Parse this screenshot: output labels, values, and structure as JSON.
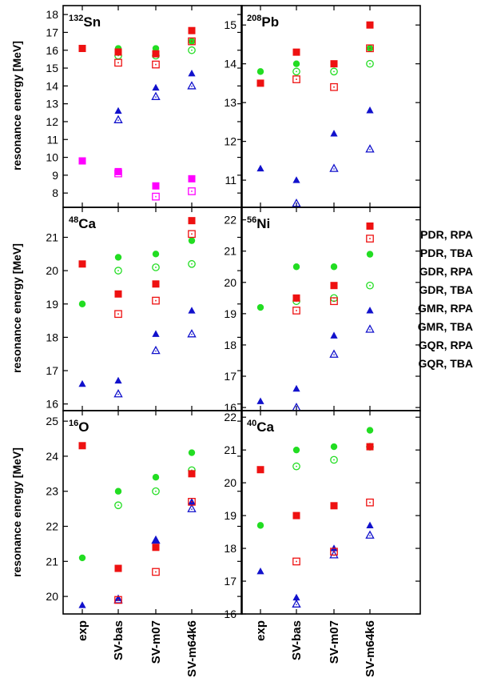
{
  "ylabel": "resonance energy [MeV]",
  "categories": [
    "exp",
    "SV-bas",
    "SV-m07",
    "SV-m64k6"
  ],
  "legend": [
    {
      "key": "PDR_RPA",
      "label": "PDR, RPA"
    },
    {
      "key": "PDR_TBA",
      "label": "PDR, TBA"
    },
    {
      "key": "GDR_RPA",
      "label": "GDR, RPA"
    },
    {
      "key": "GDR_TBA",
      "label": "GDR, TBA"
    },
    {
      "key": "GMR_RPA",
      "label": "GMR, RPA"
    },
    {
      "key": "GMR_TBA",
      "label": "GMR, TBA"
    },
    {
      "key": "GQR_RPA",
      "label": "GQR, RPA"
    },
    {
      "key": "GQR_TBA",
      "label": "GQR, TBA"
    }
  ],
  "colors": {
    "PDR": "#ff00ff",
    "GDR": "#ee1111",
    "GMR": "#22dd22",
    "GQR": "#1111cc"
  },
  "chart_data": [
    {
      "type": "scatter",
      "nucleus_mass": "132",
      "nucleus_symbol": "Sn",
      "ylim": [
        7.2,
        18.5
      ],
      "yticks": [
        8,
        9,
        10,
        11,
        12,
        13,
        14,
        15,
        16,
        17,
        18
      ],
      "series": {
        "PDR_RPA": [
          9.8,
          9.2,
          8.4,
          8.8
        ],
        "PDR_TBA": [
          null,
          9.1,
          7.8,
          8.1
        ],
        "GDR_RPA": [
          16.1,
          15.9,
          15.8,
          17.1
        ],
        "GDR_TBA": [
          null,
          15.3,
          15.2,
          16.5
        ],
        "GMR_RPA": [
          null,
          16.1,
          16.1,
          16.5
        ],
        "GMR_TBA": [
          null,
          15.7,
          15.7,
          16.0
        ],
        "GQR_RPA": [
          null,
          12.6,
          13.9,
          14.7
        ],
        "GQR_TBA": [
          null,
          12.1,
          13.4,
          14.0
        ]
      }
    },
    {
      "type": "scatter",
      "nucleus_mass": "208",
      "nucleus_symbol": "Pb",
      "ylim": [
        10.3,
        15.5
      ],
      "yticks": [
        11,
        12,
        13,
        14,
        15
      ],
      "series": {
        "PDR_RPA": [
          null,
          null,
          null,
          null
        ],
        "PDR_TBA": [
          null,
          null,
          null,
          null
        ],
        "GDR_RPA": [
          13.5,
          14.3,
          14.0,
          15.0
        ],
        "GDR_TBA": [
          null,
          13.6,
          13.4,
          14.4
        ],
        "GMR_RPA": [
          13.8,
          14.0,
          14.0,
          14.4
        ],
        "GMR_TBA": [
          null,
          13.8,
          13.8,
          14.0
        ],
        "GQR_RPA": [
          11.3,
          11.0,
          12.2,
          12.8
        ],
        "GQR_TBA": [
          null,
          10.4,
          11.3,
          11.8
        ]
      }
    },
    {
      "type": "scatter",
      "nucleus_mass": "48",
      "nucleus_symbol": "Ca",
      "ylim": [
        15.8,
        21.9
      ],
      "yticks": [
        16,
        17,
        18,
        19,
        20,
        21
      ],
      "series": {
        "PDR_RPA": [
          null,
          null,
          null,
          null
        ],
        "PDR_TBA": [
          null,
          null,
          null,
          null
        ],
        "GDR_RPA": [
          20.2,
          19.3,
          19.6,
          21.5
        ],
        "GDR_TBA": [
          null,
          18.7,
          19.1,
          21.1
        ],
        "GMR_RPA": [
          19.0,
          20.4,
          20.5,
          20.9
        ],
        "GMR_TBA": [
          null,
          20.0,
          20.1,
          20.2
        ],
        "GQR_RPA": [
          16.6,
          16.7,
          18.1,
          18.8
        ],
        "GQR_TBA": [
          null,
          16.3,
          17.6,
          18.1
        ]
      }
    },
    {
      "type": "scatter",
      "nucleus_mass": "56",
      "nucleus_symbol": "Ni",
      "ylim": [
        15.9,
        22.4
      ],
      "yticks": [
        16,
        17,
        18,
        19,
        20,
        21,
        22
      ],
      "series": {
        "PDR_RPA": [
          null,
          null,
          null,
          null
        ],
        "PDR_TBA": [
          null,
          null,
          null,
          null
        ],
        "GDR_RPA": [
          null,
          19.5,
          19.9,
          21.8
        ],
        "GDR_TBA": [
          null,
          19.1,
          19.4,
          21.4
        ],
        "GMR_RPA": [
          19.2,
          20.5,
          20.5,
          20.9
        ],
        "GMR_TBA": [
          null,
          19.4,
          19.5,
          19.9
        ],
        "GQR_RPA": [
          16.2,
          16.6,
          18.3,
          19.1
        ],
        "GQR_TBA": [
          null,
          16.0,
          17.7,
          18.5
        ]
      }
    },
    {
      "type": "scatter",
      "nucleus_mass": "16",
      "nucleus_symbol": "O",
      "ylim": [
        19.5,
        25.3
      ],
      "yticks": [
        20,
        21,
        22,
        23,
        24,
        25
      ],
      "series": {
        "PDR_RPA": [
          null,
          null,
          null,
          null
        ],
        "PDR_TBA": [
          null,
          null,
          null,
          null
        ],
        "GDR_RPA": [
          24.3,
          20.8,
          21.4,
          23.5
        ],
        "GDR_TBA": [
          null,
          19.9,
          20.7,
          22.7
        ],
        "GMR_RPA": [
          21.1,
          23.0,
          23.4,
          24.1
        ],
        "GMR_TBA": [
          null,
          22.6,
          23.0,
          23.6
        ],
        "GQR_RPA": [
          19.75,
          19.95,
          21.6,
          22.7
        ],
        "GQR_TBA": [
          null,
          19.9,
          21.6,
          22.5
        ]
      }
    },
    {
      "type": "scatter",
      "nucleus_mass": "40",
      "nucleus_symbol": "Ca",
      "ylim": [
        16.0,
        22.2
      ],
      "yticks": [
        16,
        17,
        18,
        19,
        20,
        21,
        22
      ],
      "series": {
        "PDR_RPA": [
          null,
          null,
          null,
          null
        ],
        "PDR_TBA": [
          null,
          null,
          null,
          null
        ],
        "GDR_RPA": [
          20.4,
          19.0,
          19.3,
          21.1
        ],
        "GDR_TBA": [
          null,
          17.6,
          17.9,
          19.4
        ],
        "GMR_RPA": [
          18.7,
          21.0,
          21.1,
          21.6
        ],
        "GMR_TBA": [
          null,
          20.5,
          20.7,
          21.1
        ],
        "GQR_RPA": [
          17.3,
          16.5,
          18.0,
          18.7
        ],
        "GQR_TBA": [
          null,
          16.3,
          17.8,
          18.4
        ]
      }
    }
  ]
}
